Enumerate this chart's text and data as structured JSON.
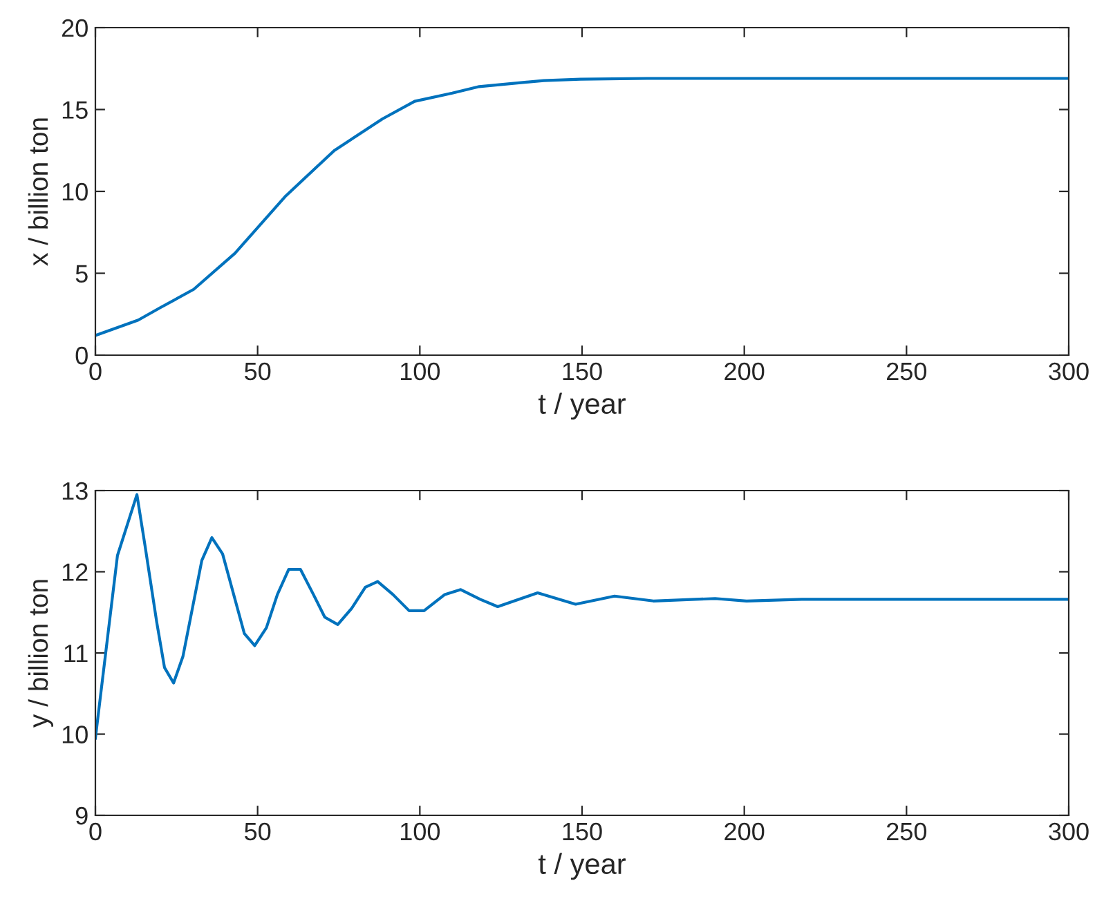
{
  "chart_data": [
    {
      "type": "line",
      "xlabel": "t / year",
      "ylabel": "x / billion ton",
      "xlim": [
        0,
        300
      ],
      "ylim": [
        0,
        20
      ],
      "xticks": [
        0,
        50,
        100,
        150,
        200,
        250,
        300
      ],
      "yticks": [
        0,
        5,
        10,
        15,
        20
      ],
      "grid": false,
      "legend": false,
      "series": [
        {
          "color": "#0072bd",
          "x": [
            0,
            13.2,
            20,
            30.3,
            43,
            58.7,
            73.6,
            88.5,
            98.4,
            110,
            118.3,
            138.2,
            149.5,
            170,
            200,
            250,
            300
          ],
          "values": [
            1.2,
            2.14,
            2.9,
            4.02,
            6.22,
            9.73,
            12.49,
            14.43,
            15.5,
            16.0,
            16.4,
            16.77,
            16.85,
            16.9,
            16.9,
            16.9,
            16.9
          ]
        }
      ]
    },
    {
      "type": "line",
      "xlabel": "t / year",
      "ylabel": "y / billion ton",
      "xlim": [
        0,
        300
      ],
      "ylim": [
        9,
        13
      ],
      "xticks": [
        0,
        50,
        100,
        150,
        200,
        250,
        300
      ],
      "yticks": [
        9,
        10,
        11,
        12,
        13
      ],
      "grid": false,
      "legend": false,
      "series": [
        {
          "color": "#0072bd",
          "x": [
            0,
            6.8,
            12.8,
            15.3,
            18.9,
            21.3,
            24.1,
            27,
            32.8,
            35.9,
            39.2,
            45.9,
            49.1,
            52.7,
            56.1,
            59.6,
            63.2,
            67.2,
            70.7,
            74.7,
            79,
            83.2,
            87,
            91.7,
            96.7,
            101.3,
            107.7,
            112.6,
            118.6,
            124,
            136.3,
            148,
            160,
            172,
            191,
            200.7,
            217.7,
            250,
            300
          ],
          "values": [
            9.95,
            12.2,
            12.95,
            12.32,
            11.38,
            10.82,
            10.63,
            10.96,
            12.14,
            12.42,
            12.22,
            11.24,
            11.09,
            11.31,
            11.72,
            12.03,
            12.03,
            11.72,
            11.44,
            11.35,
            11.55,
            11.81,
            11.88,
            11.72,
            11.52,
            11.52,
            11.72,
            11.78,
            11.66,
            11.57,
            11.74,
            11.6,
            11.7,
            11.64,
            11.67,
            11.64,
            11.66,
            11.66,
            11.66
          ]
        }
      ]
    }
  ]
}
